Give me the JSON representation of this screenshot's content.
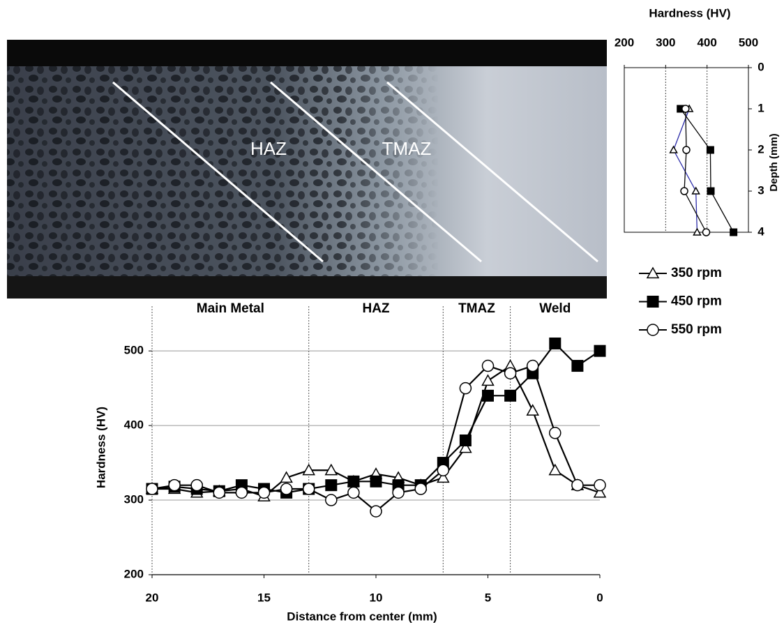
{
  "photo": {
    "labels": [
      "HAZ",
      "TMAZ"
    ]
  },
  "chart_data": [
    {
      "type": "line",
      "xlabel": "Distance from center (mm)",
      "ylabel": "Hardness (HV)",
      "x": [
        20,
        19,
        18,
        17,
        16,
        15,
        14,
        13,
        12,
        11,
        10,
        9,
        8,
        7,
        6,
        5,
        4,
        3,
        2,
        1,
        0
      ],
      "xlim": [
        20,
        0
      ],
      "xticks": [
        20,
        15,
        10,
        5,
        0
      ],
      "ylim": [
        200,
        560
      ],
      "yticks": [
        200,
        300,
        400,
        500
      ],
      "grid": true,
      "zones": [
        {
          "name": "Main Metal",
          "from": 20,
          "to": 13
        },
        {
          "name": "HAZ",
          "from": 13,
          "to": 7
        },
        {
          "name": "TMAZ",
          "from": 7,
          "to": 4
        },
        {
          "name": "Weld",
          "from": 4,
          "to": 0
        }
      ],
      "series": [
        {
          "name": "350 rpm",
          "marker": "triangle",
          "color": "#000000",
          "values": [
            315,
            315,
            310,
            312,
            315,
            305,
            330,
            340,
            340,
            325,
            335,
            330,
            320,
            330,
            370,
            460,
            480,
            420,
            340,
            320,
            310
          ]
        },
        {
          "name": "450 rpm",
          "marker": "square",
          "color": "#000000",
          "values": [
            315,
            318,
            315,
            312,
            320,
            315,
            310,
            315,
            320,
            325,
            325,
            320,
            320,
            350,
            380,
            440,
            440,
            470,
            510,
            480,
            500
          ]
        },
        {
          "name": "550 rpm",
          "marker": "circle",
          "color": "#000000",
          "values": [
            315,
            320,
            320,
            310,
            310,
            310,
            315,
            315,
            300,
            310,
            285,
            310,
            315,
            340,
            450,
            480,
            470,
            480,
            390,
            320,
            320
          ]
        }
      ],
      "legend": "right"
    },
    {
      "type": "line",
      "xlabel": "Hardness (HV)",
      "ylabel": "Depth (mm)",
      "depth": [
        1,
        2,
        3,
        4
      ],
      "xlim": [
        200,
        500
      ],
      "xticks": [
        200,
        300,
        400,
        500
      ],
      "ylim": [
        0,
        4
      ],
      "yticks": [
        0,
        1,
        2,
        3,
        4
      ],
      "grid": true,
      "series": [
        {
          "marker": "triangle",
          "color": "#2b2ba8",
          "values": [
            357,
            319,
            373,
            376
          ]
        },
        {
          "marker": "square",
          "color": "#000000",
          "values": [
            336,
            408,
            409,
            464
          ]
        },
        {
          "marker": "circle",
          "color": "#000000",
          "values": [
            348,
            350,
            345,
            398
          ]
        }
      ]
    }
  ]
}
